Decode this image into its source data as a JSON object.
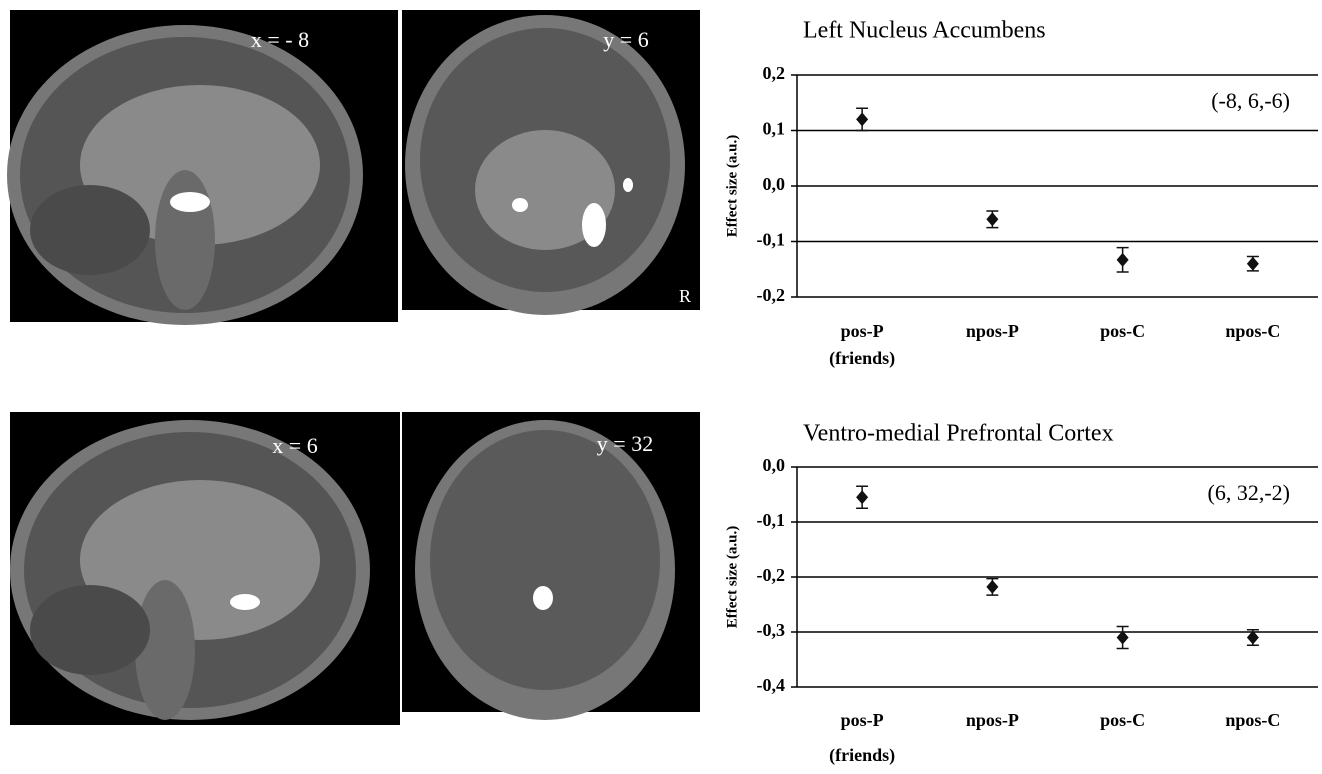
{
  "images": [
    {
      "label": "x = - 8"
    },
    {
      "label": "y = 6",
      "side": "R"
    },
    {
      "label": "x = 6"
    },
    {
      "label": "y = 32"
    }
  ],
  "chart_data": [
    {
      "type": "point",
      "title": "Left Nucleus Accumbens",
      "y_label": "Effect size (a.u.)",
      "annotation": "(-8, 6,-6)",
      "categories": [
        "pos-P",
        "npos-P",
        "pos-C",
        "npos-C"
      ],
      "category_note": "(friends)",
      "values": [
        0.12,
        -0.06,
        -0.133,
        -0.14
      ],
      "errors": [
        0.02,
        0.015,
        0.022,
        0.013
      ],
      "color": "#111111",
      "ylim": [
        -0.2,
        0.2
      ],
      "yticks": [
        {
          "value": 0.2,
          "label": "0,2"
        },
        {
          "value": 0.1,
          "label": "0,1"
        },
        {
          "value": 0,
          "label": "0,0"
        },
        {
          "value": -0.1,
          "label": "-0,1"
        },
        {
          "value": -0.2,
          "label": "-0,2"
        }
      ],
      "grid": true
    },
    {
      "type": "point",
      "title": "Ventro-medial Prefrontal Cortex",
      "y_label": "Effect size (a.u.)",
      "annotation": "(6, 32,-2)",
      "categories": [
        "pos-P",
        "npos-P",
        "pos-C",
        "npos-C"
      ],
      "category_note": "(friends)",
      "values": [
        -0.055,
        -0.218,
        -0.31,
        -0.31
      ],
      "errors": [
        0.02,
        0.015,
        0.02,
        0.014
      ],
      "color": "#111111",
      "ylim": [
        -0.4,
        0
      ],
      "yticks": [
        {
          "value": 0,
          "label": "0,0"
        },
        {
          "value": -0.1,
          "label": "-0,1"
        },
        {
          "value": -0.2,
          "label": "-0,2"
        },
        {
          "value": -0.3,
          "label": "-0,3"
        },
        {
          "value": -0.4,
          "label": "-0,4"
        }
      ],
      "grid": true
    }
  ]
}
